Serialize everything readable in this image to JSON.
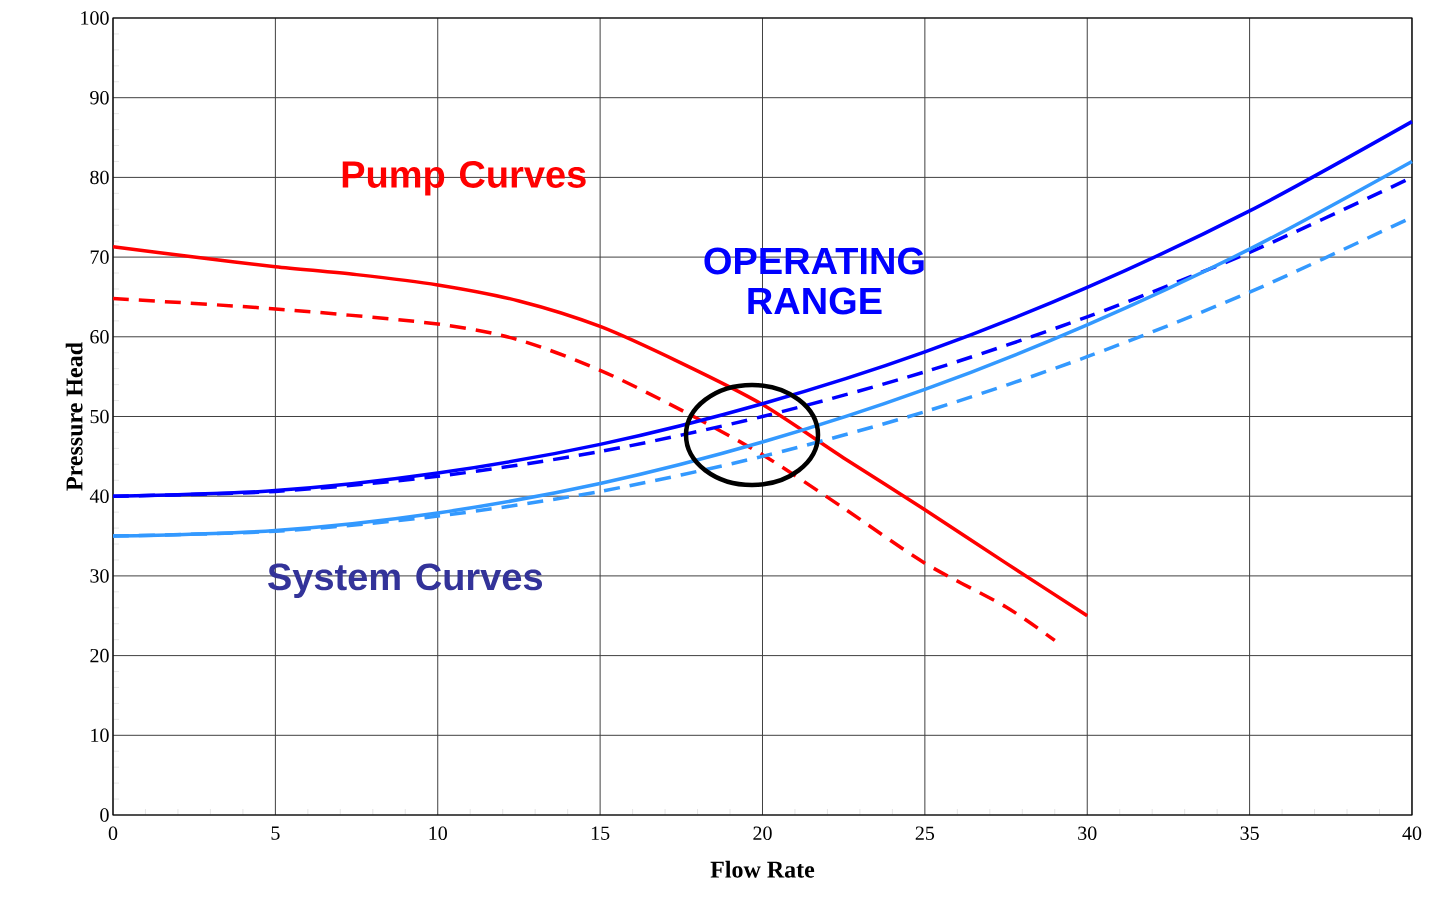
{
  "chart_data": {
    "type": "line",
    "xlabel": "Flow Rate",
    "ylabel": "Pressure Head",
    "annotations": [
      "Pump Curves",
      "OPERATING RANGE",
      "System Curves"
    ],
    "xlim": [
      0,
      40
    ],
    "ylim": [
      0,
      100
    ],
    "xticks": [
      0,
      5,
      10,
      15,
      20,
      25,
      30,
      35,
      40
    ],
    "yticks": [
      0,
      10,
      20,
      30,
      40,
      50,
      60,
      70,
      80,
      90,
      100
    ],
    "grid": true,
    "marker": "none",
    "series": [
      {
        "color": "#ff0000",
        "line_style": "solid",
        "x": [
          0,
          2.5,
          5,
          7.5,
          10,
          12.5,
          15,
          17.5,
          20,
          22.5,
          25,
          27.5,
          30
        ],
        "values": [
          71.3,
          70,
          68.8,
          67.8,
          66.5,
          64.5,
          61.3,
          56.7,
          51.5,
          44.8,
          38.3,
          31.6,
          25
        ]
      },
      {
        "color": "#ff0000",
        "line_style": "dashed",
        "x": [
          0,
          5,
          10,
          12.5,
          15,
          17.5,
          20,
          22.5,
          25,
          27.5,
          29
        ],
        "values": [
          64.8,
          63.5,
          61.6,
          59.6,
          55.8,
          50.8,
          45.2,
          38.5,
          31.6,
          26.1,
          21.9
        ]
      },
      {
        "color": "#0000ff",
        "line_style": "solid",
        "x": [
          0,
          5,
          10,
          15,
          20,
          25,
          30,
          35,
          40
        ],
        "values": [
          40,
          40.7,
          42.9,
          46.5,
          51.6,
          58.1,
          66.2,
          75.8,
          87
        ]
      },
      {
        "color": "#0000ff",
        "line_style": "dashed",
        "x": [
          0,
          5,
          10,
          15,
          20,
          25,
          30,
          35,
          40
        ],
        "values": [
          40,
          40.6,
          42.5,
          45.6,
          50,
          55.6,
          62.5,
          70.6,
          80
        ]
      },
      {
        "color": "#3399ff",
        "line_style": "solid",
        "x": [
          0,
          5,
          10,
          15,
          20,
          25,
          30,
          35,
          40
        ],
        "values": [
          35,
          35.7,
          37.9,
          41.6,
          46.8,
          53.4,
          61.5,
          71,
          82
        ]
      },
      {
        "color": "#3399ff",
        "line_style": "dashed",
        "x": [
          0,
          5,
          10,
          15,
          20,
          25,
          30,
          35,
          40
        ],
        "values": [
          35,
          35.6,
          37.5,
          40.6,
          45,
          50.6,
          57.5,
          65.6,
          75
        ]
      }
    ]
  }
}
